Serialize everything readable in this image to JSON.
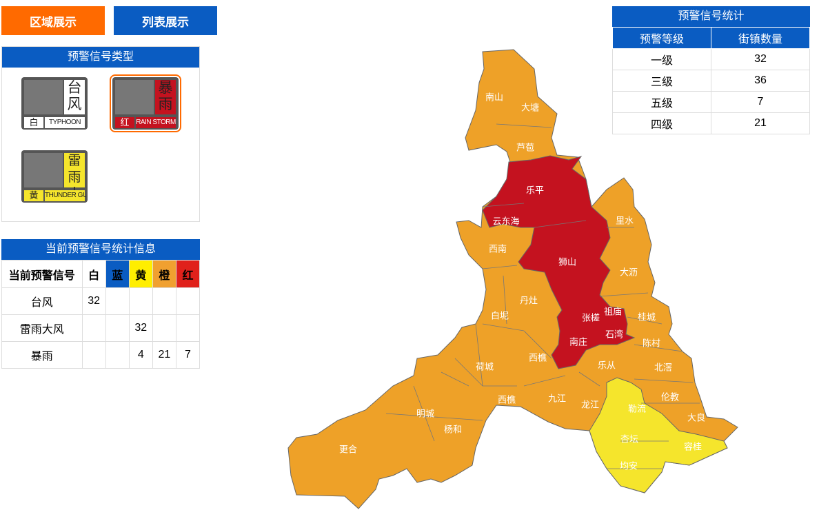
{
  "tabs": [
    "区域展示",
    "列表展示"
  ],
  "signal_types": {
    "title": "预警信号类型",
    "items": [
      {
        "name": "台风",
        "level": "白",
        "en": "TYPHOON"
      },
      {
        "name": "暴雨",
        "level": "红",
        "en": "RAIN STORM"
      },
      {
        "name": "雷雨大风",
        "level": "黄",
        "en": "THUNDER GUST"
      }
    ]
  },
  "current_stats": {
    "title": "当前预警信号统计信息",
    "header": [
      "当前预警信号",
      "白",
      "蓝",
      "黄",
      "橙",
      "红"
    ],
    "rows": [
      [
        "台风",
        32,
        null,
        null,
        null,
        null
      ],
      [
        "雷雨大风",
        null,
        null,
        32,
        null,
        null
      ],
      [
        "暴雨",
        null,
        null,
        4,
        21,
        7
      ]
    ]
  },
  "level_stats": {
    "title": "预警信号统计",
    "header": [
      "预警等级",
      "街镇数量"
    ],
    "rows": [
      [
        "一级",
        32
      ],
      [
        "三级",
        36
      ],
      [
        "五级",
        7
      ],
      [
        "四级",
        21
      ]
    ]
  },
  "map": {
    "regions": [
      "南山",
      "大塘",
      "芦苞",
      "乐平",
      "云东海",
      "西南",
      "狮山",
      "里水",
      "大沥",
      "丹灶",
      "白坭",
      "张槎",
      "祖庙",
      "石湾",
      "桂城",
      "南庄",
      "陈村",
      "西樵",
      "乐从",
      "北滘",
      "荷城",
      "九江",
      "西樵",
      "龙江",
      "勒流",
      "伦教",
      "大良",
      "明城",
      "杨和",
      "杏坛",
      "容桂",
      "更合",
      "均安"
    ]
  }
}
